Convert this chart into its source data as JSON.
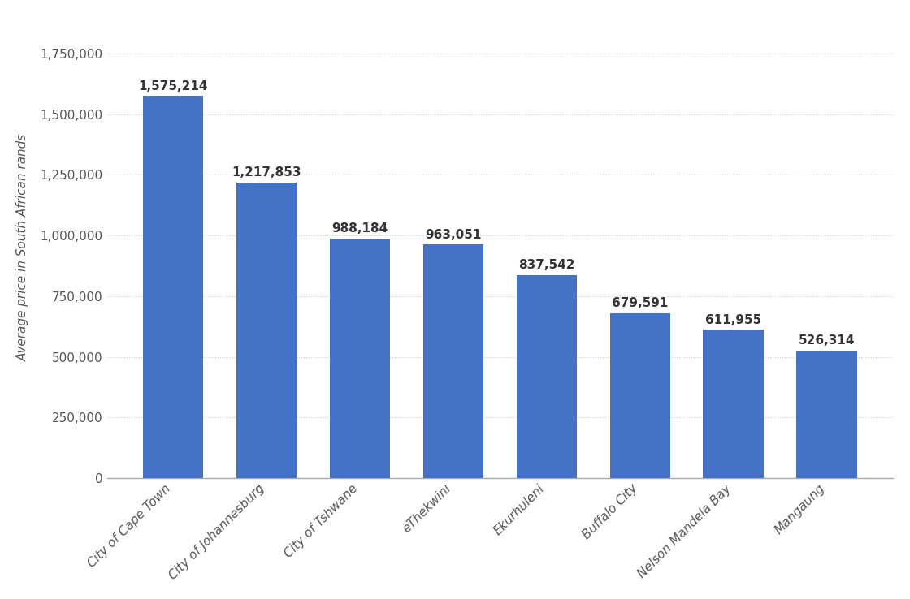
{
  "categories": [
    "City of Cape Town",
    "City of Johannesburg",
    "City of Tshwane",
    "eThekwini",
    "Ekurhuleni",
    "Buffalo City",
    "Nelson Mandela Bay",
    "Mangaung"
  ],
  "values": [
    1575214,
    1217853,
    988184,
    963051,
    837542,
    679591,
    611955,
    526314
  ],
  "bar_color": "#4472c4",
  "ylabel": "Average price in South African rands",
  "ylim": [
    0,
    1900000
  ],
  "yticks": [
    0,
    250000,
    500000,
    750000,
    1000000,
    1250000,
    1500000,
    1750000
  ],
  "background_color": "#ffffff",
  "grid_color": "#cccccc",
  "label_fontsize": 11,
  "tick_fontsize": 11,
  "ylabel_fontsize": 11,
  "annotation_fontsize": 11,
  "annotation_color": "#333333"
}
